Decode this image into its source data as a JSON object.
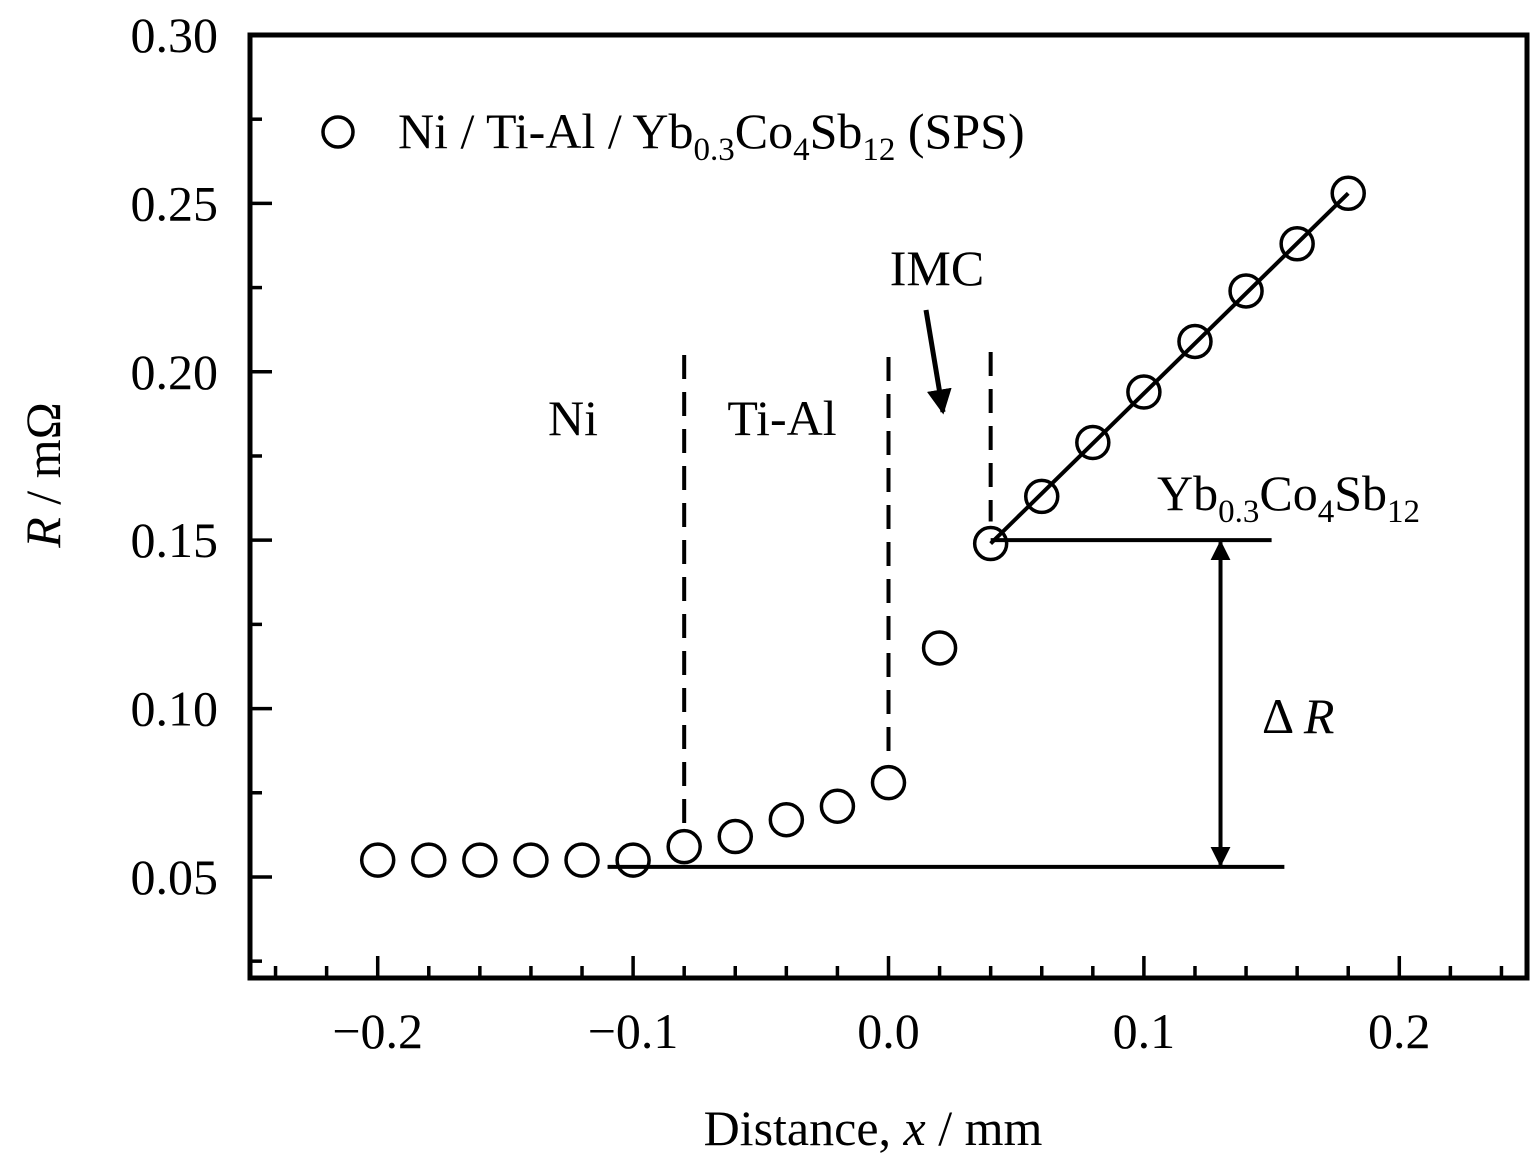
{
  "chart_data": {
    "type": "scatter",
    "xlabel": {
      "pre": "Distance, ",
      "var": "x",
      "post": " / mm"
    },
    "ylabel": {
      "var": "R",
      "post": " / mΩ"
    },
    "xlim": [
      -0.25,
      0.25
    ],
    "ylim": [
      0.02,
      0.3
    ],
    "x_ticks": [
      -0.2,
      -0.1,
      0.0,
      0.1,
      0.2
    ],
    "x_tick_labels": [
      "−0.2",
      "−0.1",
      "0.0",
      "0.1",
      "0.2"
    ],
    "y_ticks": [
      0.05,
      0.1,
      0.15,
      0.2,
      0.25,
      0.3
    ],
    "y_tick_labels": [
      "0.05",
      "0.10",
      "0.15",
      "0.20",
      "0.25",
      "0.30"
    ],
    "grid": false,
    "legend_position": "top-left",
    "series": [
      {
        "name_parts": [
          "Ni / Ti-Al / Yb",
          "0.3",
          "Co",
          "4",
          "Sb",
          "12",
          " (SPS)"
        ],
        "marker": "open-circle",
        "x": [
          -0.2,
          -0.18,
          -0.16,
          -0.14,
          -0.12,
          -0.1,
          -0.08,
          -0.06,
          -0.04,
          -0.02,
          0.0,
          0.02,
          0.04,
          0.06,
          0.08,
          0.1,
          0.12,
          0.14,
          0.16,
          0.18
        ],
        "y": [
          0.055,
          0.055,
          0.055,
          0.055,
          0.055,
          0.055,
          0.059,
          0.062,
          0.067,
          0.071,
          0.078,
          0.118,
          0.149,
          0.163,
          0.179,
          0.194,
          0.209,
          0.224,
          0.238,
          0.253
        ]
      }
    ],
    "fit_line": {
      "x": [
        0.04,
        0.18
      ],
      "y": [
        0.149,
        0.253
      ]
    },
    "boundaries": [
      -0.08,
      0.0,
      0.04
    ],
    "region_labels": [
      "Ni",
      "Ti-Al",
      "IMC"
    ],
    "material_label_parts": [
      "Yb",
      "0.3",
      "Co",
      "4",
      "Sb",
      "12"
    ],
    "delta_label": {
      "sym": "Δ ",
      "var": "R"
    },
    "baseline_levels": {
      "upper": 0.15,
      "lower": 0.053
    }
  }
}
